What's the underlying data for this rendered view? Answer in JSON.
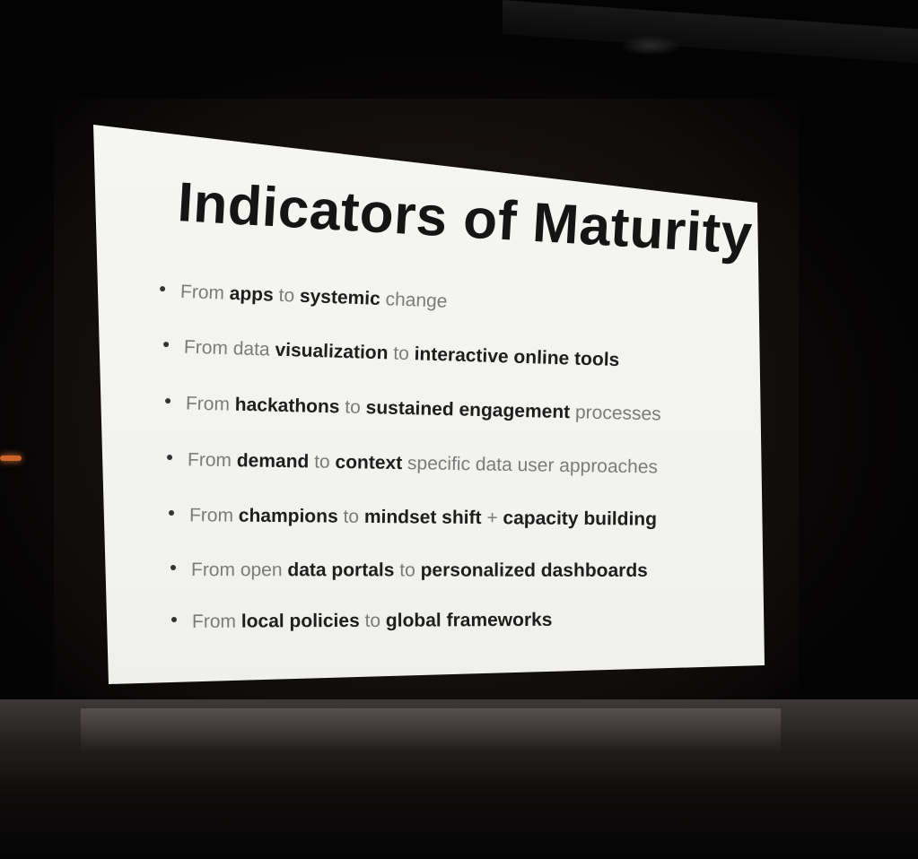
{
  "slide": {
    "title": "Indicators of Maturity",
    "bullets": [
      {
        "segments": [
          {
            "text": "From ",
            "weight": "light"
          },
          {
            "text": "apps",
            "weight": "bold"
          },
          {
            "text": " to ",
            "weight": "light"
          },
          {
            "text": "systemic",
            "weight": "bold"
          },
          {
            "text": " change",
            "weight": "light"
          }
        ]
      },
      {
        "segments": [
          {
            "text": "From data ",
            "weight": "light"
          },
          {
            "text": "visualization",
            "weight": "bold"
          },
          {
            "text": " to ",
            "weight": "light"
          },
          {
            "text": "interactive online tools",
            "weight": "bold"
          }
        ]
      },
      {
        "segments": [
          {
            "text": "From ",
            "weight": "light"
          },
          {
            "text": "hackathons",
            "weight": "bold"
          },
          {
            "text": " to ",
            "weight": "light"
          },
          {
            "text": "sustained engagement",
            "weight": "bold"
          },
          {
            "text": " processes",
            "weight": "light"
          }
        ]
      },
      {
        "segments": [
          {
            "text": "From ",
            "weight": "light"
          },
          {
            "text": "demand",
            "weight": "bold"
          },
          {
            "text": " to ",
            "weight": "light"
          },
          {
            "text": "context",
            "weight": "bold"
          },
          {
            "text": " specific data user approaches",
            "weight": "light"
          }
        ]
      },
      {
        "segments": [
          {
            "text": "From ",
            "weight": "light"
          },
          {
            "text": "champions",
            "weight": "bold"
          },
          {
            "text": " to ",
            "weight": "light"
          },
          {
            "text": "mindset shift",
            "weight": "bold"
          },
          {
            "text": " + ",
            "weight": "light"
          },
          {
            "text": "capacity building",
            "weight": "bold"
          }
        ]
      },
      {
        "segments": [
          {
            "text": "From open ",
            "weight": "light"
          },
          {
            "text": "data portals",
            "weight": "bold"
          },
          {
            "text": " to ",
            "weight": "light"
          },
          {
            "text": "personalized dashboards",
            "weight": "bold"
          }
        ]
      },
      {
        "segments": [
          {
            "text": "From ",
            "weight": "light"
          },
          {
            "text": "local policies",
            "weight": "bold"
          },
          {
            "text": " to ",
            "weight": "light"
          },
          {
            "text": "global frameworks",
            "weight": "bold"
          }
        ]
      }
    ]
  }
}
